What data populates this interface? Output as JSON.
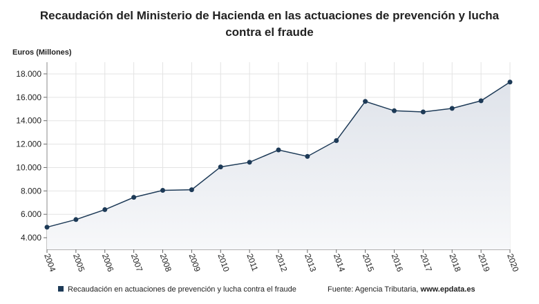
{
  "chart_data": {
    "type": "line",
    "title_line1": "Recaudación del Ministerio de Hacienda en las actuaciones de prevención y lucha",
    "title_line2": "contra el fraude",
    "y_label": "Euros (Millones)",
    "categories": [
      "2004",
      "2005",
      "2006",
      "2007",
      "2008",
      "2009",
      "2010",
      "2011",
      "2012",
      "2013",
      "2014",
      "2015",
      "2016",
      "2017",
      "2018",
      "2019",
      "2020"
    ],
    "series": [
      {
        "name": "Recaudación en actuaciones de prevención y lucha contra el fraude",
        "color": "#1d3a57",
        "values": [
          4900,
          5550,
          6400,
          7450,
          8050,
          8100,
          10050,
          10450,
          11500,
          10950,
          12300,
          15650,
          14850,
          14750,
          15050,
          15700,
          17300
        ]
      }
    ],
    "ylim": [
      3000,
      19000
    ],
    "yticks": [
      {
        "value": 4000,
        "label": "4.000"
      },
      {
        "value": 6000,
        "label": "6.000"
      },
      {
        "value": 8000,
        "label": "8.000"
      },
      {
        "value": 10000,
        "label": "10.000"
      },
      {
        "value": 12000,
        "label": "12.000"
      },
      {
        "value": 14000,
        "label": "14.000"
      },
      {
        "value": 16000,
        "label": "16.000"
      },
      {
        "value": 18000,
        "label": "18.000"
      }
    ],
    "grid": true,
    "source_label": "Fuente: Agencia Tributaria,",
    "source_site": "www.epdata.es"
  }
}
